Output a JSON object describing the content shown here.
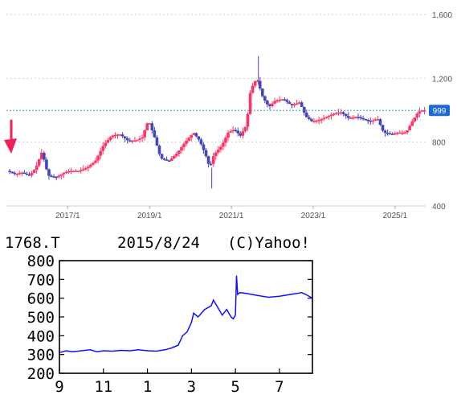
{
  "chart_data": [
    {
      "type": "candlestick",
      "title": "",
      "xlabel": "",
      "ylabel": "",
      "ylim": [
        400,
        1600
      ],
      "y_ticks": [
        "1,600",
        "1,200",
        "800",
        "400"
      ],
      "y_tick_values": [
        1600,
        1200,
        800,
        400
      ],
      "x_ticks": [
        "2017/1",
        "2019/1",
        "2021/1",
        "2023/1",
        "2025/1"
      ],
      "x_tick_values": [
        2017.0,
        2019.0,
        2021.0,
        2023.0,
        2025.0
      ],
      "xlim": [
        2015.5,
        2025.75
      ],
      "current_price": 999,
      "current_price_label": "999",
      "grid": true,
      "colors": {
        "up": "#ff3366",
        "down": "#4444bb",
        "price_line": "#39a3c4",
        "price_badge": "#1a6bd6",
        "marker": "#ee2255"
      },
      "price_path": [
        [
          2015.55,
          620
        ],
        [
          2015.75,
          600
        ],
        [
          2015.9,
          610
        ],
        [
          2016.1,
          590
        ],
        [
          2016.25,
          640
        ],
        [
          2016.4,
          740
        ],
        [
          2016.55,
          590
        ],
        [
          2016.75,
          580
        ],
        [
          2016.95,
          610
        ],
        [
          2017.1,
          620
        ],
        [
          2017.3,
          620
        ],
        [
          2017.5,
          640
        ],
        [
          2017.7,
          680
        ],
        [
          2017.9,
          780
        ],
        [
          2018.1,
          840
        ],
        [
          2018.3,
          850
        ],
        [
          2018.5,
          810
        ],
        [
          2018.7,
          810
        ],
        [
          2018.85,
          830
        ],
        [
          2019.0,
          940
        ],
        [
          2019.15,
          830
        ],
        [
          2019.3,
          700
        ],
        [
          2019.5,
          680
        ],
        [
          2019.7,
          730
        ],
        [
          2019.9,
          800
        ],
        [
          2020.1,
          860
        ],
        [
          2020.25,
          810
        ],
        [
          2020.4,
          720
        ],
        [
          2020.5,
          640
        ],
        [
          2020.6,
          720
        ],
        [
          2020.8,
          780
        ],
        [
          2020.95,
          860
        ],
        [
          2021.1,
          880
        ],
        [
          2021.25,
          840
        ],
        [
          2021.4,
          910
        ],
        [
          2021.5,
          1130
        ],
        [
          2021.65,
          1200
        ],
        [
          2021.8,
          1080
        ],
        [
          2021.95,
          1020
        ],
        [
          2022.1,
          1060
        ],
        [
          2022.3,
          1070
        ],
        [
          2022.5,
          1030
        ],
        [
          2022.7,
          1050
        ],
        [
          2022.85,
          960
        ],
        [
          2023.0,
          930
        ],
        [
          2023.2,
          940
        ],
        [
          2023.45,
          970
        ],
        [
          2023.7,
          990
        ],
        [
          2023.9,
          950
        ],
        [
          2024.1,
          960
        ],
        [
          2024.3,
          940
        ],
        [
          2024.45,
          930
        ],
        [
          2024.6,
          950
        ],
        [
          2024.75,
          860
        ],
        [
          2024.95,
          850
        ],
        [
          2025.1,
          860
        ],
        [
          2025.3,
          860
        ],
        [
          2025.45,
          930
        ],
        [
          2025.6,
          990
        ],
        [
          2025.7,
          999
        ]
      ]
    },
    {
      "type": "line",
      "title": "2015/8/24",
      "ticker": "1768.T",
      "copyright": "(C)Yahoo!",
      "xlabel": "",
      "ylabel": "",
      "ylim": [
        200,
        800
      ],
      "y_ticks": [
        "800",
        "700",
        "600",
        "500",
        "400",
        "300",
        "200"
      ],
      "y_tick_values": [
        800,
        700,
        600,
        500,
        400,
        300,
        200
      ],
      "x_ticks": [
        "9",
        "11",
        "1",
        "3",
        "5",
        "7"
      ],
      "x_tick_values": [
        0,
        2,
        4,
        6,
        8,
        10
      ],
      "xlim": [
        0,
        11.5
      ],
      "grid": false,
      "line_color": "#1010ff",
      "x": [
        0,
        0.3,
        0.6,
        1.0,
        1.4,
        1.7,
        2.0,
        2.4,
        2.8,
        3.2,
        3.6,
        4.0,
        4.4,
        4.8,
        5.1,
        5.4,
        5.6,
        5.8,
        6.0,
        6.1,
        6.3,
        6.6,
        6.9,
        7.0,
        7.2,
        7.4,
        7.6,
        7.8,
        7.9,
        8.0,
        8.05,
        8.1,
        8.2,
        8.5,
        9.0,
        9.5,
        10.0,
        10.5,
        10.8,
        11.0,
        11.2,
        11.5
      ],
      "y": [
        310,
        320,
        315,
        320,
        325,
        315,
        320,
        318,
        322,
        320,
        325,
        320,
        318,
        325,
        335,
        350,
        400,
        420,
        470,
        520,
        500,
        540,
        560,
        590,
        550,
        510,
        540,
        500,
        490,
        510,
        720,
        620,
        630,
        625,
        615,
        605,
        610,
        620,
        625,
        630,
        620,
        600
      ]
    }
  ]
}
